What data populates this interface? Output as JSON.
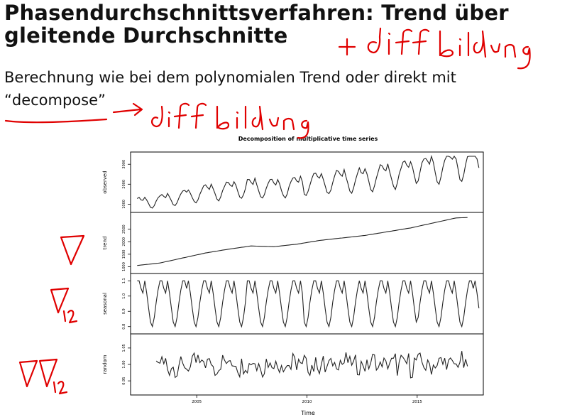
{
  "slide": {
    "title_line1": "Phasendurchschnittsverfahren: Trend über",
    "title_line2": "gleitende Durchschnitte",
    "text_line1": "Berechnung wie bei dem polynomialen Trend oder direkt mit",
    "text_line2": "“decompose”"
  },
  "handwriting": {
    "note_title": "+ diff bildung",
    "note_arrow": "→ diff bildung",
    "nabla": "∇",
    "nabla_12": "∇12",
    "nabla_nabla_12": "∇∇12",
    "color": "#e00000"
  },
  "chart_data": {
    "type": "line",
    "title": "Decomposition of multiplicative time series",
    "xlabel": "Time",
    "x_range": [
      2002,
      2018
    ],
    "x_ticks": [
      "2005",
      "2010",
      "2015"
    ],
    "panels": [
      {
        "name": "observed",
        "ylabel": "observed",
        "ylim": [
          800,
          3400
        ],
        "ticks": [
          "1000",
          "2000",
          "3000"
        ],
        "trend_start": 850,
        "trend_end": 3000,
        "amplitude": 0.22
      },
      {
        "name": "trend",
        "ylabel": "trend",
        "ylim": [
          900,
          3000
        ],
        "ticks": [
          "1000",
          "1500",
          "2000",
          "2500"
        ],
        "values": [
          1050,
          1150,
          1350,
          1550,
          1700,
          1830,
          1800,
          1900,
          2050,
          2150,
          2250,
          2400,
          2550,
          2750,
          2950,
          2980
        ]
      },
      {
        "name": "seasonal",
        "ylabel": "seasonal",
        "ylim": [
          0.78,
          1.12
        ],
        "ticks": [
          "0.8",
          "0.9",
          "1.0",
          "1.1"
        ],
        "pattern": [
          0.8,
          0.86,
          0.96,
          1.04,
          1.1,
          1.1,
          1.05,
          1.02,
          1.1,
          1.02,
          0.92,
          0.83
        ]
      },
      {
        "name": "random",
        "ylabel": "random",
        "ylim": [
          0.92,
          1.08
        ],
        "ticks": [
          "0.95",
          "1.00",
          "1.05"
        ],
        "center": 1.0
      }
    ],
    "colors": {
      "line": "#222222",
      "axis": "#000000"
    }
  }
}
